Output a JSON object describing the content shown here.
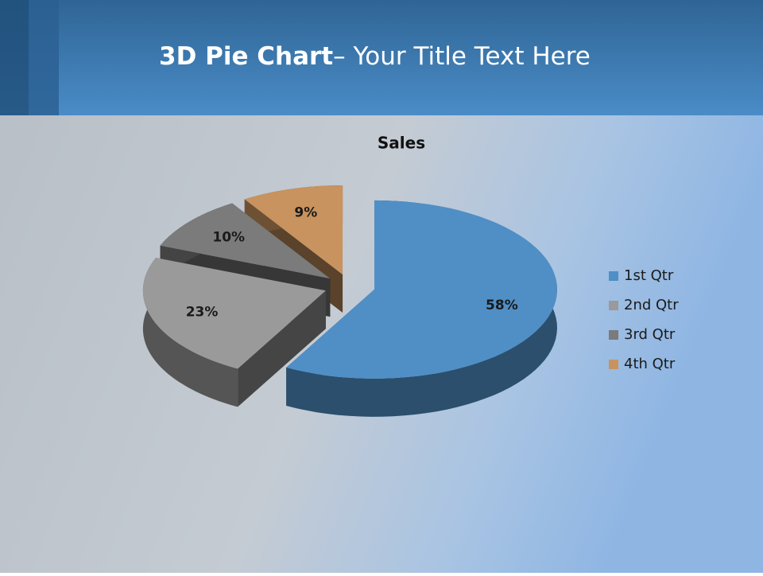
{
  "slide": {
    "title_bold": "3D Pie Chart",
    "title_rest": "– Your Title Text Here"
  },
  "chart_data": {
    "type": "pie",
    "title": "Sales",
    "categories": [
      "1st Qtr",
      "2nd Qtr",
      "3rd Qtr",
      "4th Qtr"
    ],
    "values": [
      58,
      23,
      10,
      9
    ],
    "value_labels": [
      "58%",
      "23%",
      "10%",
      "9%"
    ],
    "colors": [
      "#4f8fc6",
      "#9a9a9a",
      "#7b7b7b",
      "#c8935f"
    ],
    "legend": "right"
  }
}
